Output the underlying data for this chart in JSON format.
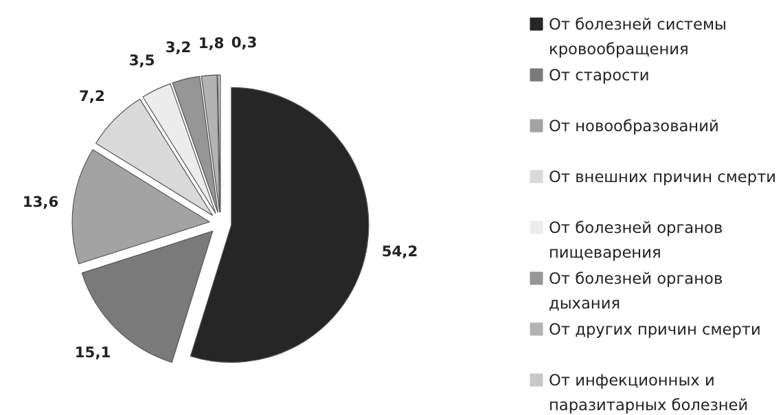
{
  "chart_data": {
    "type": "pie",
    "categories": [
      "От болезней системы кровообращения",
      "От старости",
      "От новообразований",
      "От внешних причин смерти",
      "От болезней органов пищеварения",
      "От болезней органов дыхания",
      "От других причин смерти",
      "От инфекционных и паразитарных болезней"
    ],
    "values": [
      54.2,
      15.1,
      13.6,
      7.2,
      3.5,
      3.2,
      1.8,
      0.3
    ],
    "value_labels": [
      "54,2",
      "15,1",
      "13,6",
      "7,2",
      "3,5",
      "3,2",
      "1,8",
      "0,3"
    ],
    "colors": [
      "#262626",
      "#7a7a7a",
      "#a3a3a3",
      "#d9d9d9",
      "#ececec",
      "#969696",
      "#b3b3b3",
      "#c8c8c8"
    ],
    "legend": "right"
  }
}
